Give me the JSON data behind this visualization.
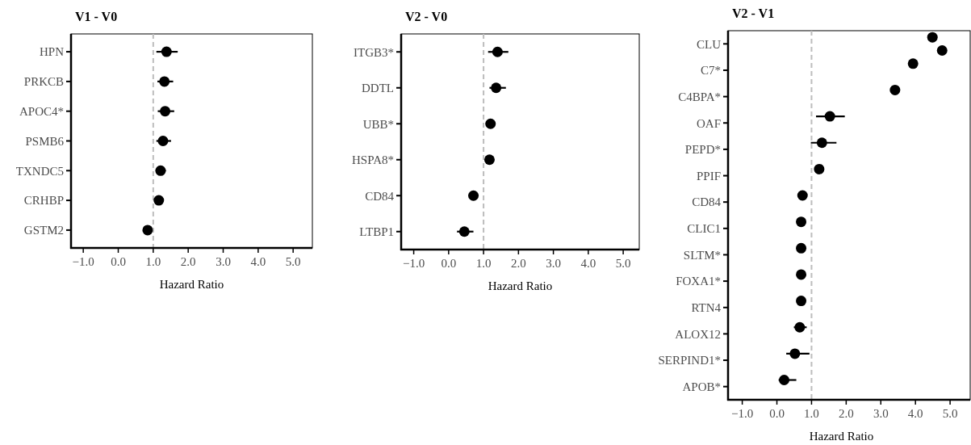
{
  "chart_data": [
    {
      "type": "scatter",
      "orientation": "horizontal",
      "title": "V1 - V0",
      "xlabel": "Hazard Ratio",
      "categories": [
        "HPN",
        "PRKCB",
        "APOC4*",
        "PSMB6",
        "TXNDC5",
        "CRHBP",
        "GSTM2"
      ],
      "series": [
        {
          "color": "#000000",
          "values": [
            1.38,
            1.32,
            1.34,
            1.28,
            1.21,
            1.16,
            0.84
          ],
          "errors": [
            [
              1.09,
              1.7
            ],
            [
              1.12,
              1.57
            ],
            [
              1.13,
              1.6
            ],
            [
              1.09,
              1.51
            ],
            [
              1.07,
              1.36
            ],
            null,
            null
          ]
        }
      ],
      "xlim": [
        -1.35,
        5.55
      ],
      "xticks": [
        {
          "value": -1,
          "label": "−1.0"
        },
        {
          "value": 0,
          "label": "0.0"
        },
        {
          "value": 1,
          "label": "1.0"
        },
        {
          "value": 2,
          "label": "2.0"
        },
        {
          "value": 3,
          "label": "3.0"
        },
        {
          "value": 4,
          "label": "4.0"
        },
        {
          "value": 5,
          "label": "5.0"
        }
      ],
      "ref_lines": [
        {
          "axis": "x",
          "value": 1,
          "color": "#bdbdbd",
          "line_style": "dashed"
        }
      ],
      "grid": false,
      "marker": "circle"
    },
    {
      "type": "scatter",
      "orientation": "horizontal",
      "title": "V2 - V0",
      "xlabel": "Hazard Ratio",
      "categories": [
        "ITGB3*",
        "DDTL",
        "UBB*",
        "HSPA8*",
        "CD84",
        "LTBP1"
      ],
      "series": [
        {
          "color": "#000000",
          "values": [
            1.4,
            1.36,
            1.2,
            1.17,
            0.71,
            0.45
          ],
          "errors": [
            [
              1.13,
              1.71
            ],
            [
              1.17,
              1.64
            ],
            null,
            null,
            null,
            [
              0.24,
              0.71
            ]
          ]
        }
      ],
      "xlim": [
        -1.36,
        5.46
      ],
      "xticks": [
        {
          "value": -1,
          "label": "−1.0"
        },
        {
          "value": 0,
          "label": "0.0"
        },
        {
          "value": 1,
          "label": "1.0"
        },
        {
          "value": 2,
          "label": "2.0"
        },
        {
          "value": 3,
          "label": "3.0"
        },
        {
          "value": 4,
          "label": "4.0"
        },
        {
          "value": 5,
          "label": "5.0"
        }
      ],
      "ref_lines": [
        {
          "axis": "x",
          "value": 1,
          "color": "#bdbdbd",
          "line_style": "dashed"
        }
      ],
      "grid": false,
      "marker": "circle"
    },
    {
      "type": "scatter",
      "orientation": "horizontal",
      "title": "V2 - V1",
      "xlabel": "Hazard Ratio",
      "categories": [
        "CLU",
        "C7*",
        "C4BPA*",
        "OAF",
        "PEPD*",
        "PPIF",
        "CD84",
        "CLIC1",
        "SLTM*",
        "FOXA1*",
        "RTN4",
        "ALOX12",
        "SERPIND1*",
        "APOB*"
      ],
      "series": [
        {
          "color": "#000000",
          "values": [
            4.49,
            3.93,
            3.41,
            1.53,
            1.3,
            1.22,
            0.74,
            0.7,
            0.7,
            0.7,
            0.7,
            0.66,
            0.52,
            0.21
          ],
          "errors": [
            null,
            null,
            null,
            [
              1.13,
              1.96
            ],
            [
              0.98,
              1.72
            ],
            null,
            null,
            null,
            null,
            null,
            [
              0.6,
              0.82
            ],
            [
              0.49,
              0.86
            ],
            [
              0.27,
              0.94
            ],
            [
              0.05,
              0.56
            ]
          ]
        },
        {
          "color": "#000000",
          "values": [
            4.77,
            null,
            null,
            null,
            null,
            null,
            null,
            null,
            null,
            null,
            null,
            null,
            null,
            null
          ]
        }
      ],
      "xlim": [
        -1.41,
        5.58
      ],
      "xticks": [
        {
          "value": -1,
          "label": "−1.0"
        },
        {
          "value": 0,
          "label": "0.0"
        },
        {
          "value": 1,
          "label": "1.0"
        },
        {
          "value": 2,
          "label": "2.0"
        },
        {
          "value": 3,
          "label": "3.0"
        },
        {
          "value": 4,
          "label": "4.0"
        },
        {
          "value": 5,
          "label": "5.0"
        }
      ],
      "ref_lines": [
        {
          "axis": "x",
          "value": 1,
          "color": "#bdbdbd",
          "line_style": "dashed"
        }
      ],
      "grid": false,
      "marker": "circle"
    }
  ]
}
